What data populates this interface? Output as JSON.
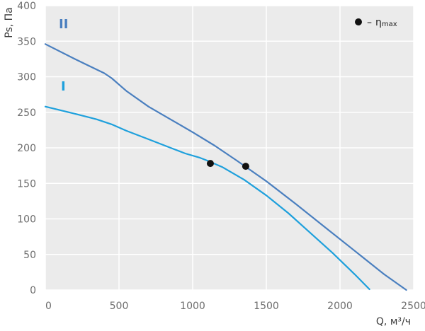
{
  "chart_data": {
    "type": "line",
    "xlabel": "Q, м³/ч",
    "ylabel": "Ps, Па",
    "xlim": [
      0,
      2500
    ],
    "ylim": [
      0,
      400
    ],
    "x_ticks": [
      0,
      500,
      1000,
      1500,
      2000,
      2500
    ],
    "y_ticks": [
      0,
      50,
      100,
      150,
      200,
      250,
      300,
      350,
      400
    ],
    "grid": true,
    "legend": {
      "position": "top-right",
      "marker": "●",
      "dash": "–",
      "symbol": "η",
      "subscript": "max"
    },
    "series": [
      {
        "name": "II",
        "color": "#4a7fbf",
        "x": [
          0,
          200,
          400,
          450,
          500,
          550,
          700,
          850,
          1000,
          1150,
          1300,
          1500,
          1700,
          1900,
          2100,
          2300,
          2450
        ],
        "y": [
          346,
          325,
          305,
          298,
          289,
          280,
          258,
          240,
          222,
          203,
          182,
          153,
          121,
          88,
          55,
          22,
          0
        ],
        "eta_max": {
          "x": 1360,
          "y": 174
        }
      },
      {
        "name": "I",
        "color": "#1ea0dc",
        "x": [
          0,
          200,
          350,
          450,
          550,
          700,
          850,
          950,
          1050,
          1100,
          1200,
          1350,
          1500,
          1650,
          1800,
          1950,
          2100,
          2200
        ],
        "y": [
          258,
          248,
          240,
          233,
          224,
          212,
          200,
          192,
          186,
          182,
          173,
          155,
          133,
          108,
          80,
          52,
          22,
          1
        ],
        "eta_max": {
          "x": 1120,
          "y": 178
        }
      }
    ]
  }
}
